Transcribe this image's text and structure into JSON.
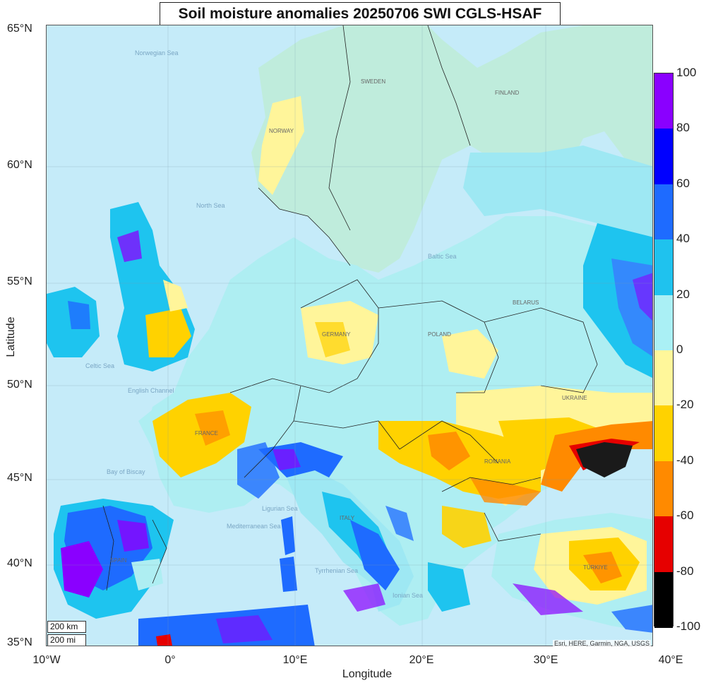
{
  "title": "Soil moisture anomalies 20250706 SWI CGLS-HSAF",
  "xlabel": "Longitude",
  "ylabel": "Latitude",
  "x_ticks": [
    "10°W",
    "0°",
    "10°E",
    "20°E",
    "30°E",
    "40°E"
  ],
  "y_ticks": [
    "65°N",
    "60°N",
    "55°N",
    "50°N",
    "45°N",
    "40°N",
    "35°N"
  ],
  "colorbar": {
    "ticks": [
      "100",
      "80",
      "60",
      "40",
      "20",
      "0",
      "-20",
      "-40",
      "-60",
      "-80",
      "-100"
    ],
    "colors": [
      "#8a00ff",
      "#0000ff",
      "#1e6bff",
      "#1fc2ee",
      "#aaf0f5",
      "#fff79a",
      "#ffd200",
      "#ff8a00",
      "#e60000",
      "#000000"
    ]
  },
  "scale": {
    "km": "200 km",
    "mi": "200 mi"
  },
  "attribution": "Esri, HERE, Garmin, NGA, USGS",
  "place_labels": {
    "seas": [
      "Norwegian Sea",
      "North Sea",
      "Baltic Sea",
      "Mediterranean Sea",
      "Tyrrhenian Sea",
      "Ionian Sea",
      "Ligurian Sea",
      "Bay of Biscay",
      "Celtic Sea",
      "English Channel"
    ],
    "countries": [
      "NORWAY",
      "SWEDEN",
      "FINLAND",
      "POLAND",
      "BELARUS",
      "UKRAINE",
      "ROMANIA",
      "ITALY",
      "FRANCE",
      "SPAIN",
      "GERMANY",
      "TÜRKIYE"
    ]
  },
  "map": {
    "extent": {
      "lon": [
        -10,
        40
      ],
      "lat": [
        35,
        65
      ]
    },
    "anomaly_regions": [
      {
        "name": "Spain-Portugal",
        "level": "80-100"
      },
      {
        "name": "Southern Italy",
        "level": "40-60"
      },
      {
        "name": "Western France",
        "level": "-20 to -40"
      },
      {
        "name": "Eastern England",
        "level": "-20 to -40"
      },
      {
        "name": "Hungary-Romania",
        "level": "-20 to -60"
      },
      {
        "name": "Southern Ukraine / Crimea",
        "level": "-60 to -100"
      },
      {
        "name": "Central Anatolia",
        "level": "-20 to -60"
      },
      {
        "name": "Western Russia",
        "level": "40-80"
      },
      {
        "name": "Norway",
        "level": "0 to -20"
      }
    ]
  }
}
